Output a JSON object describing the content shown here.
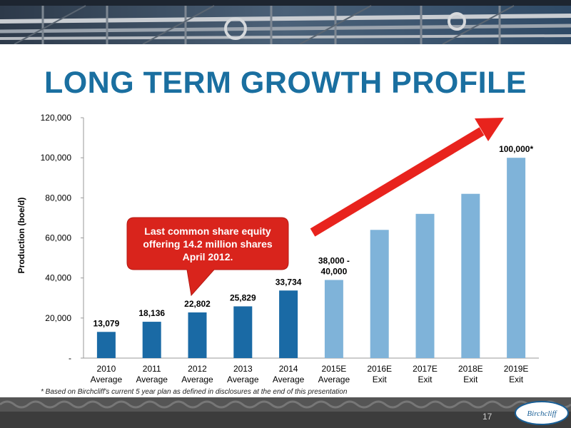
{
  "slide": {
    "title": "LONG TERM GROWTH PROFILE",
    "footnote": "* Based on Birchcliff's current 5 year plan as defined in disclosures at the end of this presentation",
    "page_number": "17",
    "logo_text": "Birchcliff"
  },
  "colors": {
    "title": "#1a6fa0",
    "actual_bar": "#1a6aa5",
    "forecast_bar": "#7fb3d9",
    "callout": "#d9241c",
    "arrow": "#e8231d"
  },
  "chart_data": {
    "type": "bar",
    "ylabel": "Production (boe/d)",
    "ylim": [
      0,
      120000
    ],
    "yticks": [
      0,
      20000,
      40000,
      60000,
      80000,
      100000,
      120000
    ],
    "ytick_labels": [
      "-",
      "20,000",
      "40,000",
      "60,000",
      "80,000",
      "100,000",
      "120,000"
    ],
    "grid": false,
    "categories": [
      [
        "2010",
        "Average"
      ],
      [
        "2011",
        "Average"
      ],
      [
        "2012",
        "Average"
      ],
      [
        "2013",
        "Average"
      ],
      [
        "2014",
        "Average"
      ],
      [
        "2015E",
        "Average"
      ],
      [
        "2016E",
        "Exit"
      ],
      [
        "2017E",
        "Exit"
      ],
      [
        "2018E",
        "Exit"
      ],
      [
        "2019E",
        "Exit"
      ]
    ],
    "values": [
      13079,
      18136,
      22802,
      25829,
      33734,
      39000,
      64000,
      72000,
      82000,
      100000
    ],
    "forecast": [
      false,
      false,
      false,
      false,
      false,
      true,
      true,
      true,
      true,
      true
    ],
    "data_labels": [
      [
        "13,079"
      ],
      [
        "18,136"
      ],
      [
        "22,802"
      ],
      [
        "25,829"
      ],
      [
        "33,734"
      ],
      [
        "38,000 -",
        "40,000"
      ],
      [],
      [],
      [],
      [
        "100,000*"
      ]
    ],
    "annotations": [
      {
        "type": "callout",
        "text": [
          "Last common share equity",
          "offering 14.2 million shares",
          "April 2012."
        ],
        "points_to_category": "2012"
      },
      {
        "type": "arrow",
        "direction": "up-right"
      }
    ]
  }
}
